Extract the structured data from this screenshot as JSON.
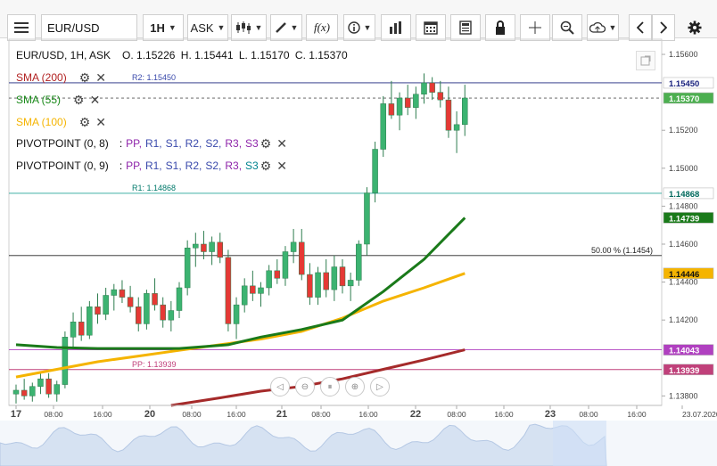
{
  "toolbar": {
    "symbol": "EUR/USD",
    "timeframe": "1H",
    "price_type": "ASK",
    "fx_label": "f(x)"
  },
  "ohlc": {
    "symbol_info": "EUR/USD, 1H, ASK",
    "open": "O. 1.15226",
    "high": "H. 1.15441",
    "low": "L. 1.15170",
    "close": "C. 1.15370"
  },
  "indicators": [
    {
      "label": "SMA (200)",
      "color": "#b22222"
    },
    {
      "label": "SMA (55)",
      "color": "#1a8a1a"
    },
    {
      "label": "SMA (100)",
      "color": "#f5b400"
    }
  ],
  "pivots": [
    {
      "label": "PIVOTPOINT (0, 8)"
    },
    {
      "label": "PIVOTPOINT (0, 9)"
    }
  ],
  "pivot_levels": {
    "colon": ":",
    "pp": "PP,",
    "r1": "R1,",
    "s1": "S1,",
    "r2": "R2,",
    "s2": "S2,",
    "r3": "R3,",
    "s3": "S3"
  },
  "chart_lines": {
    "r2": "R2: 1.15450",
    "r1": "R1: 1.14868",
    "pp": "PP: 1.13939",
    "fib": "50.00 % (1.1454)"
  },
  "price_axis": {
    "ticks": [
      "1.15600",
      "1.15200",
      "1.15000",
      "1.14800",
      "1.14600",
      "1.14400",
      "1.14200",
      "1.13800"
    ],
    "badges": [
      {
        "text": "1.15450",
        "bg": "#ffffff",
        "fg": "#1a237e"
      },
      {
        "text": "1.15370",
        "bg": "#4caf50",
        "fg": "#ffffff"
      },
      {
        "text": "1.14868",
        "bg": "#ffffff",
        "fg": "#00695c"
      },
      {
        "text": "1.14739",
        "bg": "#1a7a1a",
        "fg": "#ffffff"
      },
      {
        "text": "1.14446",
        "bg": "#f5b400",
        "fg": "#111111"
      },
      {
        "text": "1.14043",
        "bg": "#b040c0",
        "fg": "#ffffff"
      },
      {
        "text": "1.13939",
        "bg": "#c0407a",
        "fg": "#ffffff"
      }
    ]
  },
  "time_axis": {
    "labels": [
      "17",
      "08:00",
      "16:00",
      "20",
      "08:00",
      "16:00",
      "21",
      "08:00",
      "16:00",
      "22",
      "08:00",
      "16:00",
      "23",
      "08:00",
      "16:00",
      "23.07.2020"
    ],
    "bold": [
      "17",
      "20",
      "21",
      "22",
      "23"
    ]
  },
  "colors": {
    "up": "#3cb371",
    "down": "#e53935",
    "sma200": "#a52a2a",
    "sma55": "#1a7a1a",
    "sma100": "#f5b400"
  },
  "chart_data": {
    "type": "candlestick",
    "symbol": "EUR/USD",
    "timeframe": "1H",
    "ylim": [
      1.1375,
      1.1568
    ],
    "candles": [
      [
        1.1381,
        1.1386,
        1.1376,
        1.1383
      ],
      [
        1.1383,
        1.1389,
        1.1378,
        1.138
      ],
      [
        1.138,
        1.1387,
        1.1377,
        1.1385
      ],
      [
        1.1385,
        1.1392,
        1.1381,
        1.1389
      ],
      [
        1.1389,
        1.1392,
        1.1379,
        1.1381
      ],
      [
        1.1381,
        1.1388,
        1.1377,
        1.1386
      ],
      [
        1.1386,
        1.1414,
        1.1384,
        1.1411
      ],
      [
        1.1411,
        1.1424,
        1.1405,
        1.1419
      ],
      [
        1.1419,
        1.1427,
        1.1409,
        1.1412
      ],
      [
        1.1412,
        1.143,
        1.141,
        1.1427
      ],
      [
        1.1427,
        1.1434,
        1.1418,
        1.1423
      ],
      [
        1.1423,
        1.1437,
        1.142,
        1.1433
      ],
      [
        1.1433,
        1.1439,
        1.1425,
        1.1436
      ],
      [
        1.1436,
        1.1441,
        1.1429,
        1.1432
      ],
      [
        1.1432,
        1.1438,
        1.1424,
        1.1427
      ],
      [
        1.1427,
        1.1432,
        1.1414,
        1.1418
      ],
      [
        1.1418,
        1.1436,
        1.1415,
        1.1434
      ],
      [
        1.1434,
        1.1442,
        1.1425,
        1.1428
      ],
      [
        1.1428,
        1.1432,
        1.1416,
        1.142
      ],
      [
        1.142,
        1.143,
        1.1414,
        1.1425
      ],
      [
        1.1425,
        1.144,
        1.1421,
        1.1437
      ],
      [
        1.1437,
        1.1462,
        1.1433,
        1.1458
      ],
      [
        1.1458,
        1.1466,
        1.1448,
        1.146
      ],
      [
        1.146,
        1.1467,
        1.1452,
        1.1456
      ],
      [
        1.1456,
        1.1464,
        1.1449,
        1.1461
      ],
      [
        1.1461,
        1.1466,
        1.145,
        1.1453
      ],
      [
        1.1453,
        1.1457,
        1.1414,
        1.1418
      ],
      [
        1.1418,
        1.1432,
        1.141,
        1.1428
      ],
      [
        1.1428,
        1.1442,
        1.1424,
        1.1438
      ],
      [
        1.1438,
        1.1446,
        1.143,
        1.1434
      ],
      [
        1.1434,
        1.144,
        1.1427,
        1.1437
      ],
      [
        1.1437,
        1.1449,
        1.1433,
        1.1446
      ],
      [
        1.1446,
        1.1452,
        1.1439,
        1.1442
      ],
      [
        1.1442,
        1.1459,
        1.1438,
        1.1456
      ],
      [
        1.1456,
        1.1468,
        1.145,
        1.1461
      ],
      [
        1.1461,
        1.1468,
        1.1441,
        1.1444
      ],
      [
        1.1444,
        1.145,
        1.1428,
        1.1432
      ],
      [
        1.1432,
        1.1448,
        1.1428,
        1.1445
      ],
      [
        1.1445,
        1.1452,
        1.1432,
        1.1436
      ],
      [
        1.1436,
        1.1454,
        1.143,
        1.1448
      ],
      [
        1.1448,
        1.1452,
        1.1434,
        1.1438
      ],
      [
        1.1438,
        1.1445,
        1.143,
        1.1441
      ],
      [
        1.1441,
        1.1462,
        1.1438,
        1.146
      ],
      [
        1.146,
        1.149,
        1.1454,
        1.1487
      ],
      [
        1.1487,
        1.1514,
        1.1482,
        1.151
      ],
      [
        1.151,
        1.1538,
        1.1506,
        1.1534
      ],
      [
        1.1534,
        1.1546,
        1.1526,
        1.1528
      ],
      [
        1.1528,
        1.154,
        1.152,
        1.1537
      ],
      [
        1.1537,
        1.1544,
        1.1528,
        1.1532
      ],
      [
        1.1532,
        1.1543,
        1.1526,
        1.1539
      ],
      [
        1.1539,
        1.155,
        1.1534,
        1.1545
      ],
      [
        1.1545,
        1.1548,
        1.1536,
        1.154
      ],
      [
        1.154,
        1.1546,
        1.1532,
        1.1536
      ],
      [
        1.1536,
        1.1543,
        1.1516,
        1.152
      ],
      [
        1.152,
        1.153,
        1.1508,
        1.1523
      ],
      [
        1.1523,
        1.1544,
        1.1517,
        1.1537
      ]
    ],
    "sma55": [
      [
        0,
        1.1407
      ],
      [
        5,
        1.14055
      ],
      [
        10,
        1.1405
      ],
      [
        20,
        1.1405
      ],
      [
        26,
        1.1407
      ],
      [
        30,
        1.1411
      ],
      [
        35,
        1.1415
      ],
      [
        40,
        1.142
      ],
      [
        45,
        1.1435
      ],
      [
        50,
        1.1452
      ],
      [
        55,
        1.14739
      ]
    ],
    "sma100": [
      [
        0,
        1.139
      ],
      [
        5,
        1.1394
      ],
      [
        10,
        1.1398
      ],
      [
        15,
        1.1401
      ],
      [
        20,
        1.1404
      ],
      [
        25,
        1.1407
      ],
      [
        30,
        1.141
      ],
      [
        35,
        1.1414
      ],
      [
        40,
        1.1421
      ],
      [
        45,
        1.143
      ],
      [
        50,
        1.1437
      ],
      [
        55,
        1.14446
      ]
    ],
    "sma200": [
      [
        19,
        1.1375
      ],
      [
        25,
        1.1379
      ],
      [
        30,
        1.13825
      ],
      [
        35,
        1.1385
      ],
      [
        40,
        1.1389
      ],
      [
        45,
        1.1394
      ],
      [
        50,
        1.1399
      ],
      [
        55,
        1.14043
      ]
    ]
  },
  "nav_icons": [
    "prev-icon",
    "zoom-out-icon",
    "reset-icon",
    "zoom-in-icon",
    "next-icon"
  ]
}
